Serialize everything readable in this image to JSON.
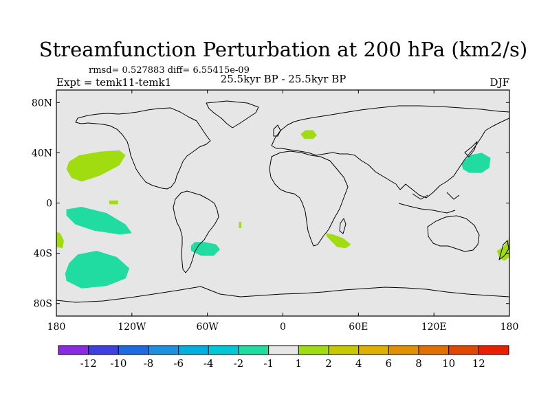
{
  "chart_data": {
    "type": "filled-contour-map",
    "title": "Streamfunction Perturbation at 200 hPa (km2/s)",
    "stats_line": "rmsd= 0.527883 diff= 6.55415e-09",
    "period_label": "25.5kyr BP - 25.5kyr BP",
    "experiment_label": "Expt = temk11-temk1",
    "season_label": "DJF",
    "xlabel": "",
    "ylabel": "",
    "xlim": [
      -180,
      180
    ],
    "ylim": [
      -90,
      90
    ],
    "x_ticks": [
      {
        "value": -180,
        "label": "180"
      },
      {
        "value": -120,
        "label": "120W"
      },
      {
        "value": -60,
        "label": "60W"
      },
      {
        "value": 0,
        "label": "0"
      },
      {
        "value": 60,
        "label": "60E"
      },
      {
        "value": 120,
        "label": "120E"
      },
      {
        "value": 180,
        "label": "180"
      }
    ],
    "y_ticks": [
      {
        "value": 80,
        "label": "80N"
      },
      {
        "value": 40,
        "label": "40N"
      },
      {
        "value": 0,
        "label": "0"
      },
      {
        "value": -40,
        "label": "40S"
      },
      {
        "value": -80,
        "label": "80S"
      }
    ],
    "colorbar": {
      "colors": [
        "#8a2be2",
        "#4040e0",
        "#1e6ae0",
        "#1e90e0",
        "#00b0e0",
        "#00c8d8",
        "#20dca0",
        "#e6e6e6",
        "#a0dc10",
        "#c8c800",
        "#e0b000",
        "#e09000",
        "#e07000",
        "#e04800",
        "#e82000"
      ],
      "labels": [
        "-12",
        "-10",
        "-8",
        "-6",
        "-4",
        "-2",
        "-1",
        "1",
        "2",
        "4",
        "6",
        "8",
        "10",
        "12"
      ]
    },
    "regions": [
      {
        "name": "north-pacific-positive",
        "value_class": "1 to 2",
        "color": "#a0dc10",
        "polygon": [
          [
            -170,
            33
          ],
          [
            -162,
            38
          ],
          [
            -145,
            41
          ],
          [
            -130,
            42
          ],
          [
            -125,
            38
          ],
          [
            -130,
            30
          ],
          [
            -145,
            22
          ],
          [
            -160,
            17
          ],
          [
            -168,
            20
          ],
          [
            -172,
            27
          ]
        ]
      },
      {
        "name": "equatorial-pacific-positive",
        "value_class": "1 to 2",
        "color": "#a0dc10",
        "polygon": [
          [
            -138,
            2
          ],
          [
            -131,
            2
          ],
          [
            -131,
            -1
          ],
          [
            -138,
            -1
          ]
        ]
      },
      {
        "name": "tropical-south-pacific-negative",
        "value_class": "-2 to -1",
        "color": "#20dca0",
        "polygon": [
          [
            -172,
            -5
          ],
          [
            -160,
            -3
          ],
          [
            -140,
            -8
          ],
          [
            -125,
            -17
          ],
          [
            -120,
            -24
          ],
          [
            -130,
            -25
          ],
          [
            -150,
            -22
          ],
          [
            -165,
            -17
          ],
          [
            -172,
            -10
          ]
        ]
      },
      {
        "name": "south-pacific-negative",
        "value_class": "-2 to -1",
        "color": "#20dca0",
        "polygon": [
          [
            -172,
            -62
          ],
          [
            -160,
            -68
          ],
          [
            -140,
            -66
          ],
          [
            -125,
            -60
          ],
          [
            -122,
            -52
          ],
          [
            -132,
            -43
          ],
          [
            -148,
            -38
          ],
          [
            -163,
            -41
          ],
          [
            -170,
            -48
          ],
          [
            -173,
            -56
          ]
        ]
      },
      {
        "name": "dateline-south-positive",
        "value_class": "1 to 2",
        "color": "#a0dc10",
        "polygon": [
          [
            -180,
            -35
          ],
          [
            -175,
            -36
          ],
          [
            -174,
            -30
          ],
          [
            -177,
            -24
          ],
          [
            -180,
            -23
          ]
        ]
      },
      {
        "name": "south-america-negative",
        "value_class": "-2 to -1",
        "color": "#20dca0",
        "polygon": [
          [
            -73,
            -38
          ],
          [
            -65,
            -42
          ],
          [
            -55,
            -42
          ],
          [
            -50,
            -37
          ],
          [
            -53,
            -33
          ],
          [
            -62,
            -31
          ],
          [
            -70,
            -31
          ],
          [
            -73,
            -34
          ]
        ]
      },
      {
        "name": "south-atlantic-positive",
        "value_class": "1 to 2",
        "color": "#a0dc10",
        "polygon": [
          [
            -35,
            -15
          ],
          [
            -33,
            -15
          ],
          [
            -33,
            -20
          ],
          [
            -35,
            -20
          ]
        ]
      },
      {
        "name": "northern-europe-positive",
        "value_class": "1 to 2",
        "color": "#a0dc10",
        "polygon": [
          [
            14,
            55
          ],
          [
            18,
            58
          ],
          [
            24,
            58
          ],
          [
            27,
            54
          ],
          [
            24,
            51
          ],
          [
            17,
            51
          ]
        ]
      },
      {
        "name": "southern-africa-positive",
        "value_class": "1 to 2",
        "color": "#a0dc10",
        "polygon": [
          [
            34,
            -24
          ],
          [
            40,
            -25
          ],
          [
            48,
            -28
          ],
          [
            54,
            -33
          ],
          [
            50,
            -36
          ],
          [
            43,
            -35
          ],
          [
            38,
            -30
          ],
          [
            35,
            -27
          ]
        ]
      },
      {
        "name": "northwest-pacific-negative",
        "value_class": "-2 to -1",
        "color": "#20dca0",
        "polygon": [
          [
            142,
            31
          ],
          [
            148,
            38
          ],
          [
            158,
            40
          ],
          [
            165,
            36
          ],
          [
            164,
            28
          ],
          [
            158,
            24
          ],
          [
            148,
            24
          ],
          [
            143,
            27
          ]
        ]
      },
      {
        "name": "southwest-pacific-positive",
        "value_class": "1 to 2",
        "color": "#a0dc10",
        "polygon": [
          [
            170,
            -38
          ],
          [
            175,
            -35
          ],
          [
            179,
            -30
          ],
          [
            180,
            -25
          ],
          [
            180,
            -43
          ],
          [
            176,
            -46
          ],
          [
            172,
            -44
          ]
        ]
      }
    ]
  }
}
